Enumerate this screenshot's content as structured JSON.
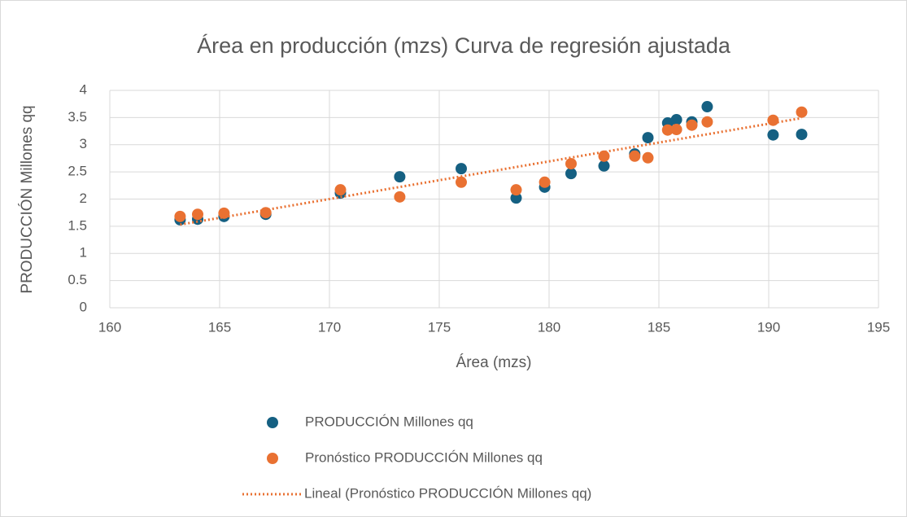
{
  "chart_data": {
    "type": "scatter",
    "title": "Área en producción (mzs) Curva de regresión ajustada",
    "xlabel": "Área (mzs)",
    "ylabel": "PRODUCCIÓN Millones qq",
    "xlim": [
      160,
      195
    ],
    "xticks": [
      160,
      165,
      170,
      175,
      180,
      185,
      190,
      195
    ],
    "ylim": [
      0,
      4
    ],
    "yticks": [
      0,
      0.5,
      1,
      1.5,
      2,
      2.5,
      3,
      3.5,
      4
    ],
    "grid": true,
    "legend": "bottom",
    "series": [
      {
        "name": "PRODUCCIÓN Millones qq",
        "color": "#156082",
        "style": "markers",
        "x": [
          163.2,
          164.0,
          165.2,
          167.1,
          170.5,
          173.2,
          176.0,
          178.5,
          179.8,
          181.0,
          182.5,
          183.9,
          184.5,
          185.4,
          185.8,
          186.5,
          187.2,
          190.2,
          191.5
        ],
        "values": [
          1.62,
          1.63,
          1.68,
          1.72,
          2.11,
          2.41,
          2.56,
          2.02,
          2.22,
          2.47,
          2.61,
          2.83,
          3.13,
          3.4,
          3.46,
          3.42,
          3.7,
          3.18,
          3.19
        ]
      },
      {
        "name": "Pronóstico PRODUCCIÓN Millones qq",
        "color": "#e97132",
        "style": "markers",
        "x": [
          163.2,
          164.0,
          165.2,
          167.1,
          170.5,
          173.2,
          176.0,
          178.5,
          179.8,
          181.0,
          182.5,
          183.9,
          184.5,
          185.4,
          185.8,
          186.5,
          187.2,
          190.2,
          191.5
        ],
        "values": [
          1.68,
          1.72,
          1.74,
          1.75,
          2.17,
          2.04,
          2.31,
          2.17,
          2.31,
          2.65,
          2.79,
          2.79,
          2.76,
          3.27,
          3.28,
          3.36,
          3.42,
          3.45,
          3.6
        ]
      },
      {
        "name": "Lineal (Pronóstico PRODUCCIÓN Millones qq)",
        "color": "#e97132",
        "style": "dotted",
        "x": [
          163.2,
          191.5
        ],
        "values": [
          1.53,
          3.49
        ]
      }
    ]
  }
}
